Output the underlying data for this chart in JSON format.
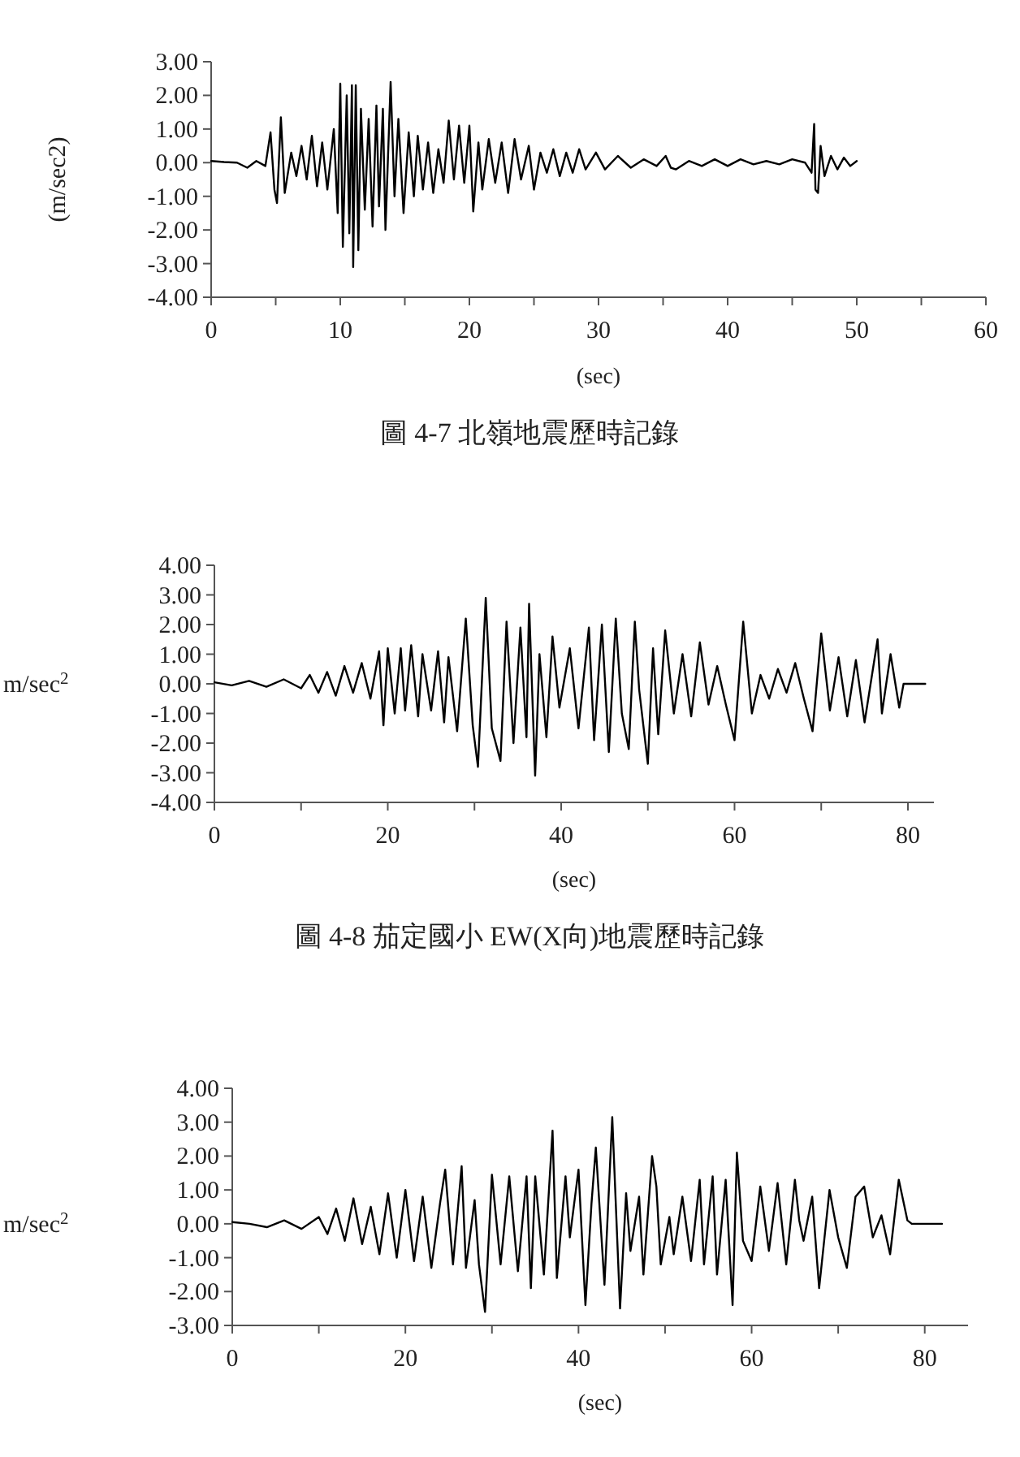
{
  "chart_data": [
    {
      "type": "line",
      "title": "圖 4-7 北嶺地震歷時記錄",
      "xlabel": "(sec)",
      "ylabel": "(m/sec2)",
      "xlim": [
        0,
        60
      ],
      "ylim": [
        -4,
        3
      ],
      "xticks": [
        0,
        {
          "value": 5,
          "label": null
        },
        10,
        {
          "value": 15,
          "label": null
        },
        20,
        {
          "value": 25,
          "label": null
        },
        30,
        {
          "value": 35,
          "label": null
        },
        40,
        {
          "value": 45,
          "label": null
        },
        50,
        {
          "value": 55,
          "label": null
        },
        60
      ],
      "yticks": [
        {
          "value": -4,
          "label": "-4.00"
        },
        {
          "value": -3,
          "label": "-3.00"
        },
        {
          "value": -2,
          "label": "-2.00"
        },
        {
          "value": -1,
          "label": "-1.00"
        },
        {
          "value": 0,
          "label": "0.00"
        },
        {
          "value": 1,
          "label": "1.00"
        },
        {
          "value": 2,
          "label": "2.00"
        },
        {
          "value": 3,
          "label": "3.00"
        }
      ],
      "grid": false,
      "marker": "none",
      "line_style": "solid",
      "series": [
        {
          "color": "#000000",
          "x": [
            0,
            1,
            2,
            2.8,
            3.5,
            4.2,
            4.6,
            4.9,
            5.1,
            5.4,
            5.7,
            6.2,
            6.6,
            7.0,
            7.4,
            7.8,
            8.2,
            8.6,
            9.0,
            9.5,
            9.8,
            10.0,
            10.2,
            10.5,
            10.7,
            10.9,
            11.0,
            11.2,
            11.4,
            11.6,
            11.9,
            12.2,
            12.5,
            12.8,
            13.0,
            13.3,
            13.5,
            13.9,
            14.2,
            14.5,
            14.9,
            15.3,
            15.7,
            16.0,
            16.4,
            16.8,
            17.2,
            17.6,
            18.0,
            18.4,
            18.8,
            19.2,
            19.6,
            20.0,
            20.3,
            20.7,
            21.0,
            21.5,
            22.0,
            22.5,
            23.0,
            23.5,
            24.0,
            24.6,
            25.0,
            25.5,
            26.0,
            26.5,
            27.0,
            27.5,
            28.0,
            28.5,
            29.0,
            29.8,
            30.5,
            31.5,
            32.5,
            33.5,
            34.5,
            35.2,
            35.6,
            36.0,
            37.0,
            38.0,
            39.0,
            40.0,
            41.0,
            42.0,
            43.0,
            44.0,
            45.0,
            46.0,
            46.5,
            46.7,
            46.8,
            47.0,
            47.2,
            47.5,
            48.0,
            48.5,
            49.0,
            49.5,
            50.0
          ],
          "values": [
            0.05,
            0.02,
            0.0,
            -0.15,
            0.05,
            -0.1,
            0.9,
            -0.8,
            -1.2,
            1.35,
            -0.9,
            0.3,
            -0.4,
            0.5,
            -0.5,
            0.8,
            -0.7,
            0.6,
            -0.8,
            1.0,
            -1.5,
            2.35,
            -2.5,
            2.0,
            -2.1,
            2.3,
            -3.1,
            2.3,
            -2.6,
            1.6,
            -1.4,
            1.3,
            -1.9,
            1.7,
            -1.3,
            1.6,
            -2.0,
            2.4,
            -1.0,
            1.3,
            -1.5,
            0.9,
            -1.0,
            0.8,
            -0.8,
            0.6,
            -0.9,
            0.4,
            -0.6,
            1.25,
            -0.5,
            1.1,
            -0.6,
            1.1,
            -1.45,
            0.6,
            -0.8,
            0.7,
            -0.6,
            0.6,
            -0.9,
            0.7,
            -0.5,
            0.5,
            -0.8,
            0.3,
            -0.3,
            0.4,
            -0.4,
            0.3,
            -0.3,
            0.4,
            -0.2,
            0.3,
            -0.2,
            0.2,
            -0.15,
            0.1,
            -0.1,
            0.2,
            -0.15,
            -0.2,
            0.05,
            -0.1,
            0.1,
            -0.1,
            0.1,
            -0.05,
            0.05,
            -0.05,
            0.1,
            0.0,
            -0.3,
            1.15,
            -0.8,
            -0.9,
            0.5,
            -0.4,
            0.2,
            -0.2,
            0.15,
            -0.1,
            0.05
          ]
        }
      ]
    },
    {
      "type": "line",
      "title": "圖 4-8 茄定國小 EW(X向)地震歷時記錄",
      "xlabel": "(sec)",
      "ylabel": "m/sec$^{2}$",
      "xlim": [
        0,
        83
      ],
      "ylim": [
        -4,
        4
      ],
      "xticks": [
        0,
        {
          "value": 10,
          "label": null
        },
        20,
        {
          "value": 30,
          "label": null
        },
        40,
        {
          "value": 50,
          "label": null
        },
        60,
        {
          "value": 70,
          "label": null
        },
        80
      ],
      "yticks": [
        {
          "value": -4,
          "label": "-4.00"
        },
        {
          "value": -3,
          "label": "-3.00"
        },
        {
          "value": -2,
          "label": "-2.00"
        },
        {
          "value": -1,
          "label": "-1.00"
        },
        {
          "value": 0,
          "label": "0.00"
        },
        {
          "value": 1,
          "label": "1.00"
        },
        {
          "value": 2,
          "label": "2.00"
        },
        {
          "value": 3,
          "label": "3.00"
        },
        {
          "value": 4,
          "label": "4.00"
        }
      ],
      "grid": false,
      "marker": "none",
      "line_style": "solid",
      "series": [
        {
          "color": "#000000",
          "x": [
            0,
            2,
            4,
            6,
            8,
            10,
            11,
            12,
            13,
            14,
            15,
            16,
            17,
            18,
            19,
            19.5,
            20,
            20.8,
            21.5,
            22,
            22.7,
            23.5,
            24,
            25,
            25.8,
            26.5,
            27,
            28,
            29,
            29.8,
            30.4,
            31.3,
            32,
            33,
            33.7,
            34.5,
            35.3,
            36,
            36.3,
            37,
            37.5,
            38.3,
            39,
            39.8,
            41,
            42,
            43.2,
            43.8,
            44.7,
            45.5,
            46.3,
            47,
            47.8,
            48.5,
            49,
            50,
            50.6,
            51.2,
            52,
            53,
            54,
            55,
            56,
            57,
            58,
            59,
            60,
            61,
            62,
            63,
            64,
            65,
            66,
            67,
            68,
            69,
            70,
            71,
            72,
            73,
            74,
            75,
            76.5,
            77,
            78,
            79,
            79.5,
            82
          ],
          "values": [
            0.05,
            -0.05,
            0.1,
            -0.1,
            0.15,
            -0.15,
            0.3,
            -0.3,
            0.4,
            -0.4,
            0.6,
            -0.3,
            0.7,
            -0.5,
            1.1,
            -1.4,
            1.2,
            -1.0,
            1.2,
            -0.9,
            1.3,
            -1.1,
            1.0,
            -0.9,
            1.1,
            -1.3,
            0.9,
            -1.6,
            2.2,
            -1.4,
            -2.8,
            2.9,
            -1.5,
            -2.6,
            2.1,
            -2.0,
            1.9,
            -1.8,
            2.7,
            -3.1,
            1.0,
            -1.8,
            1.6,
            -0.8,
            1.2,
            -1.5,
            1.9,
            -1.9,
            2.0,
            -2.3,
            2.2,
            -1.0,
            -2.2,
            2.1,
            -0.2,
            -2.7,
            1.2,
            -1.7,
            1.8,
            -1.0,
            1.0,
            -1.1,
            1.4,
            -0.7,
            0.6,
            -0.7,
            -1.9,
            2.1,
            -1.0,
            0.3,
            -0.5,
            0.5,
            -0.3,
            0.7,
            -0.5,
            -1.6,
            1.7,
            -0.9,
            0.9,
            -1.1,
            0.8,
            -1.3,
            1.5,
            -1.0,
            1.0,
            -0.8,
            0.0,
            0.0
          ]
        }
      ]
    },
    {
      "type": "line",
      "xlabel": "(sec)",
      "ylabel": "m/sec$^{2}$",
      "xlim": [
        0,
        85
      ],
      "ylim": [
        -3,
        4
      ],
      "xticks": [
        0,
        {
          "value": 10,
          "label": null
        },
        20,
        {
          "value": 30,
          "label": null
        },
        40,
        {
          "value": 50,
          "label": null
        },
        60,
        {
          "value": 70,
          "label": null
        },
        80
      ],
      "yticks": [
        {
          "value": -3,
          "label": "-3.00"
        },
        {
          "value": -2,
          "label": "-2.00"
        },
        {
          "value": -1,
          "label": "-1.00"
        },
        {
          "value": 0,
          "label": "0.00"
        },
        {
          "value": 1,
          "label": "1.00"
        },
        {
          "value": 2,
          "label": "2.00"
        },
        {
          "value": 3,
          "label": "3.00"
        },
        {
          "value": 4,
          "label": "4.00"
        }
      ],
      "grid": false,
      "marker": "none",
      "line_style": "solid",
      "series": [
        {
          "color": "#000000",
          "x": [
            0,
            2,
            4,
            6,
            8,
            10,
            11,
            12,
            13,
            14,
            15,
            16,
            17,
            18,
            19,
            20,
            21,
            22,
            23,
            24,
            24.6,
            25.5,
            26.5,
            27,
            28,
            28.5,
            29.2,
            30,
            31,
            32,
            33,
            34,
            34.5,
            35,
            36,
            37,
            37.5,
            38.5,
            39,
            40,
            40.8,
            41.5,
            42,
            43,
            43.9,
            44.8,
            45.5,
            46,
            47,
            47.5,
            48.5,
            49,
            49.5,
            50.5,
            51,
            52,
            53,
            54,
            54.5,
            55.5,
            56,
            57,
            57.8,
            58.3,
            59,
            60,
            61,
            62,
            63,
            64,
            65,
            65.5,
            66,
            67,
            67.8,
            69,
            70,
            71,
            72,
            73,
            74,
            75,
            76,
            77,
            78,
            78.5,
            82
          ],
          "values": [
            0.05,
            0.0,
            -0.1,
            0.1,
            -0.15,
            0.2,
            -0.3,
            0.45,
            -0.5,
            0.75,
            -0.6,
            0.5,
            -0.9,
            0.9,
            -1.0,
            1.0,
            -1.1,
            0.8,
            -1.3,
            0.6,
            1.6,
            -1.2,
            1.7,
            -1.3,
            0.7,
            -1.2,
            -2.6,
            1.45,
            -1.2,
            1.4,
            -1.4,
            1.4,
            -1.9,
            1.4,
            -1.5,
            2.75,
            -1.6,
            1.4,
            -0.4,
            1.6,
            -2.4,
            0.6,
            2.25,
            -1.8,
            3.15,
            -2.5,
            0.9,
            -0.8,
            0.8,
            -1.5,
            2.0,
            1.1,
            -1.2,
            0.2,
            -0.9,
            0.8,
            -1.1,
            1.3,
            -1.2,
            1.4,
            -1.5,
            1.3,
            -2.4,
            2.1,
            -0.5,
            -1.1,
            1.1,
            -0.8,
            1.2,
            -1.2,
            1.3,
            0.1,
            -0.5,
            0.8,
            -1.9,
            1.0,
            -0.4,
            -1.3,
            0.8,
            1.1,
            -0.4,
            0.25,
            -0.9,
            1.3,
            0.1,
            0.0,
            0.0
          ]
        }
      ]
    }
  ]
}
